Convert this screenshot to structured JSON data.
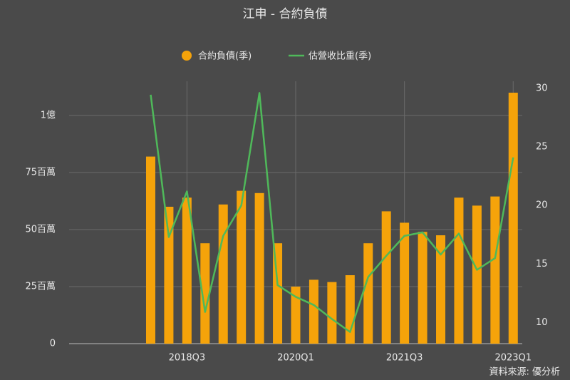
{
  "chart_data": {
    "type": "bar-line",
    "title": "江申 - 合約負債",
    "source": "資料來源: 優分析",
    "legend": "top",
    "grid": true,
    "categories": [
      null,
      null,
      null,
      null,
      null,
      null,
      "2018Q3",
      null,
      null,
      null,
      null,
      null,
      "2020Q1",
      null,
      null,
      null,
      null,
      null,
      "2021Q3",
      null,
      null,
      null,
      null,
      null,
      "2023Q1"
    ],
    "series": [
      {
        "name": "合約負債(季)",
        "type": "bar",
        "color": "#f5a30a",
        "values": [
          null,
          null,
          null,
          null,
          82000000,
          60000000,
          64000000,
          44000000,
          61000000,
          67000000,
          66000000,
          44000000,
          25000000,
          28000000,
          27000000,
          30000000,
          44000000,
          58000000,
          53000000,
          49000000,
          47500000,
          64000000,
          60500000,
          64500000,
          110000000
        ]
      },
      {
        "name": "估營收比重(季)",
        "type": "line",
        "axis": "y2",
        "color": "#4fb95a",
        "values": [
          null,
          null,
          null,
          null,
          29.45,
          17.3,
          21.2,
          10.9,
          17.4,
          20.0,
          29.6,
          13.2,
          12.2,
          11.5,
          10.3,
          9.2,
          13.9,
          15.7,
          17.4,
          17.7,
          15.8,
          17.6,
          14.5,
          15.5,
          24.1
        ]
      }
    ],
    "ylim": [
      0,
      115000000
    ],
    "yticks": [
      0,
      {
        "value": 25000000,
        "label": "25百萬"
      },
      {
        "value": 50000000,
        "label": "50百萬"
      },
      {
        "value": 75000000,
        "label": "75百萬"
      },
      {
        "value": 100000000,
        "label": "1億"
      }
    ],
    "y2lim": [
      8.2,
      30.6
    ],
    "y2ticks": [
      10,
      15,
      20,
      25,
      30
    ]
  }
}
